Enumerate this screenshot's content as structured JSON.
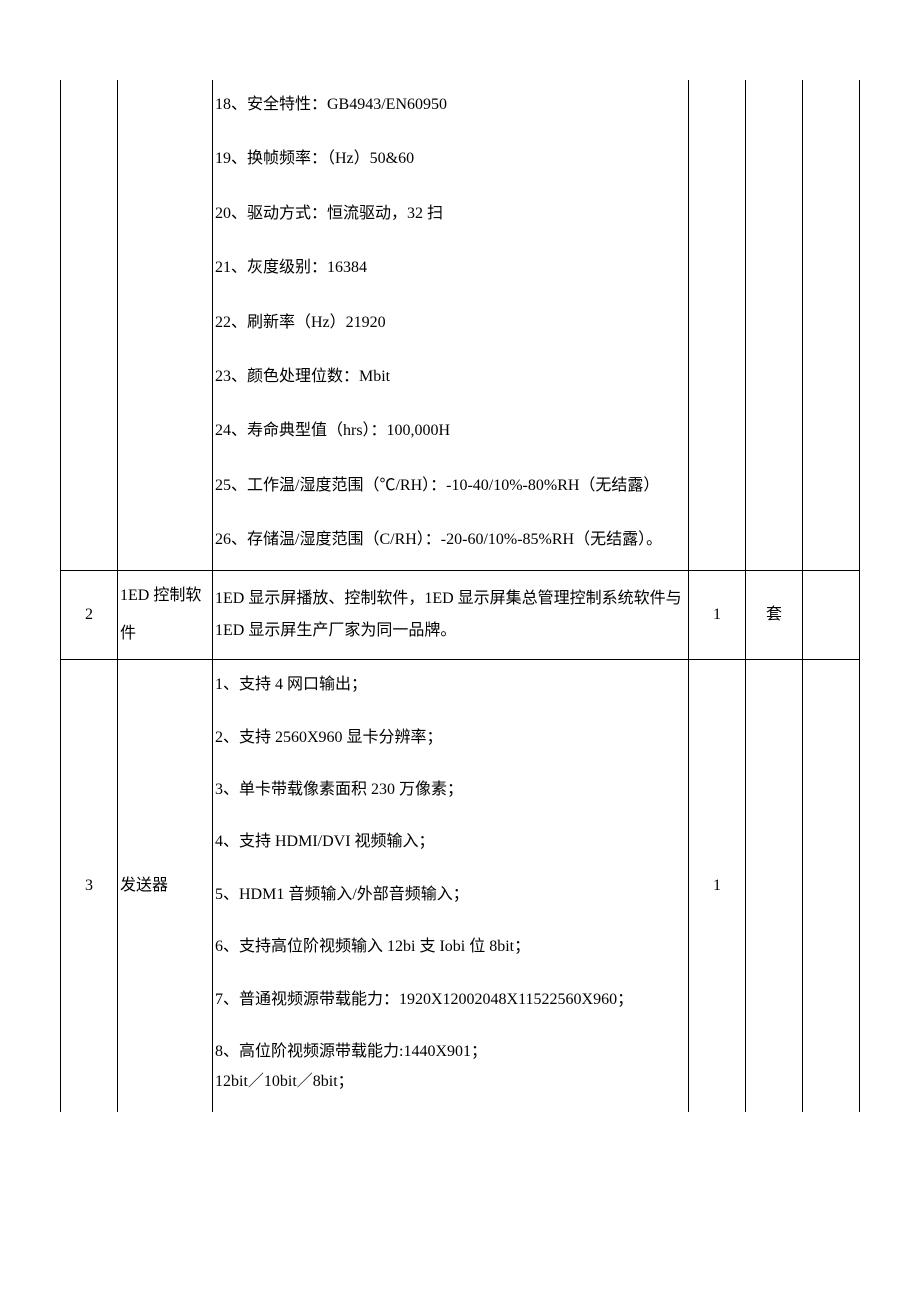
{
  "rows": [
    {
      "idx": "",
      "name": "",
      "qty": "",
      "unit": "",
      "specs": [
        "18、安全特性：GB4943/EN60950",
        "19、换帧频率：（Hz）50&60",
        "20、驱动方式：恒流驱动，32 扫",
        "21、灰度级别：16384",
        "22、刷新率（Hz）21920",
        "23、颜色处理位数：Mbit",
        "24、寿命典型值（hrs）：100,000H",
        "25、工作温/湿度范围（℃/RH）：-10-40/10%-80%RH（无结露）",
        "26、存储温/湿度范围（C/RH）：-20-60/10%-85%RH（无结露）。"
      ]
    },
    {
      "idx": "2",
      "name": "1ED 控制软件",
      "qty": "1",
      "unit": "套",
      "spec_text": "1ED 显示屏播放、控制软件，1ED 显示屏集总管理控制系统软件与 1ED 显示屏生产厂家为同一品牌。"
    },
    {
      "idx": "3",
      "name": "发送器",
      "qty": "1",
      "unit": "",
      "specs": [
        "1、支持 4 网口输出；",
        "2、支持 2560X960 显卡分辨率；",
        "3、单卡带载像素面积 230 万像素；",
        "4、支持 HDMI/DVI 视频输入；",
        "5、HDM1 音频输入/外部音频输入；",
        "6、支持高位阶视频输入 12bi 支 Iobi 位 8bit；",
        "7、普通视频源带载能力：1920X12002048X11522560X960；",
        "8、高位阶视频源带载能力:1440X901；\n12bit／10bit／8bit；"
      ]
    }
  ]
}
